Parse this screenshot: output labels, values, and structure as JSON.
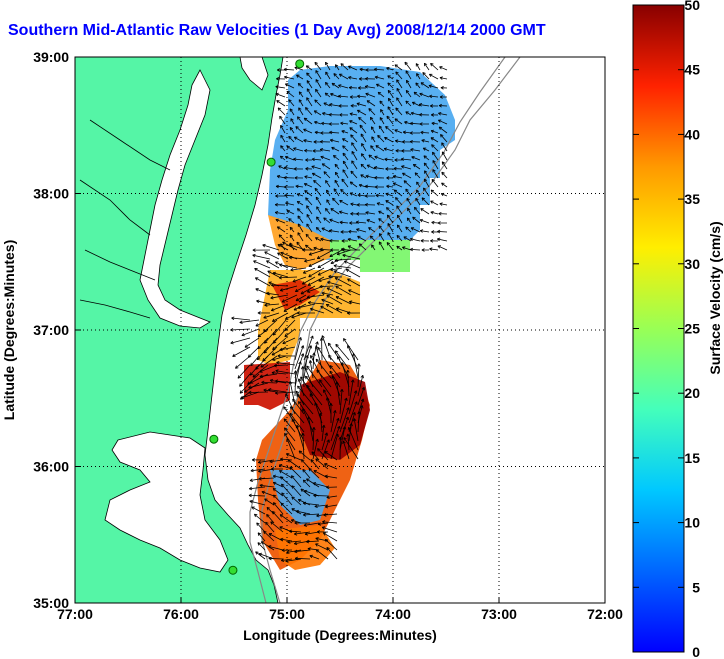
{
  "title": "Southern Mid-Atlantic Raw Velocities (1 Day Avg) 2008/12/14 2000 GMT",
  "x_axis": {
    "label": "Longitude (Degrees:Minutes)",
    "ticks": [
      "77:00",
      "76:00",
      "75:00",
      "74:00",
      "73:00",
      "72:00"
    ]
  },
  "y_axis": {
    "label": "Latitude (Degrees:Minutes)",
    "ticks": [
      "39:00",
      "38:00",
      "37:00",
      "36:00",
      "35:00"
    ]
  },
  "colorbar": {
    "label": "Surface Velocity (cm/s)",
    "ticks": [
      "50",
      "45",
      "40",
      "35",
      "30",
      "25",
      "20",
      "15",
      "10",
      "5",
      "0"
    ],
    "min": 0,
    "max": 50
  },
  "colors": {
    "land": "#55f5a6",
    "title": "#0000ff",
    "station": "#33dd33"
  },
  "stations": [
    {
      "lon": -74.88,
      "lat": 38.95
    },
    {
      "lon": -75.15,
      "lat": 38.23
    },
    {
      "lon": -75.69,
      "lat": 36.2
    },
    {
      "lon": -75.51,
      "lat": 35.24
    }
  ]
}
